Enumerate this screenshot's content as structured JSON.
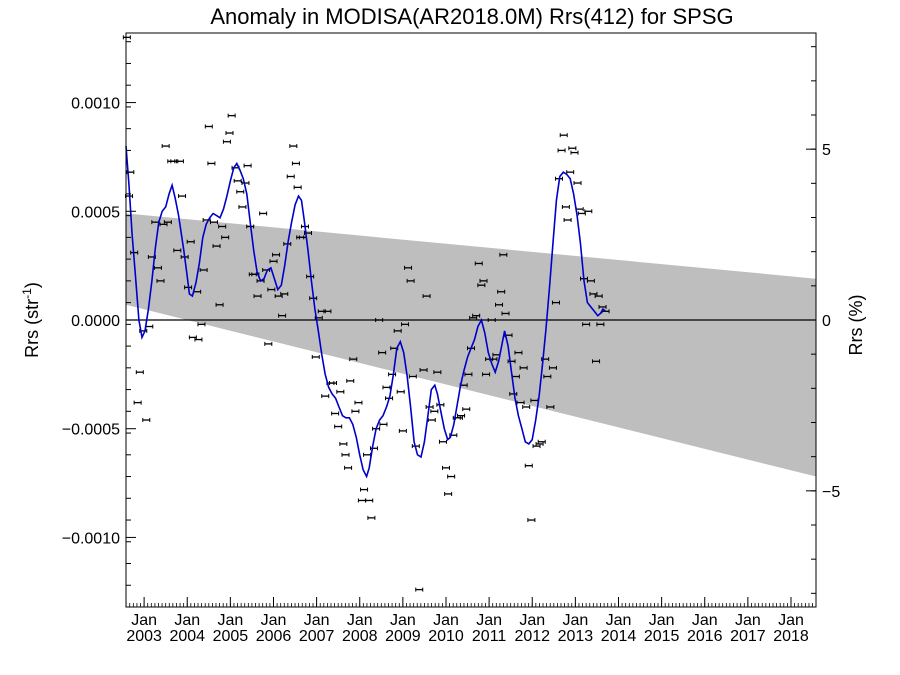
{
  "chart_data": {
    "type": "scatter",
    "title": "Anomaly in MODISA(AR2018.0M) Rrs(412) for SPSG",
    "ylabel_left": "Rrs (str",
    "ylabel_left_sup": "-1",
    "ylabel_left_close": ")",
    "ylabel_right": "Rrs (%)",
    "xlim": [
      2002.58,
      2018.58
    ],
    "ylim": [
      -0.00132,
      0.00132
    ],
    "ylim_right": [
      -8.4,
      8.4
    ],
    "y_ticks": [
      {
        "value": 0.001,
        "label": "0.0010"
      },
      {
        "value": 0.0005,
        "label": "0.0005"
      },
      {
        "value": 0.0,
        "label": "0.0000"
      },
      {
        "value": -0.0005,
        "label": "−0.0005"
      },
      {
        "value": -0.001,
        "label": "−0.0010"
      }
    ],
    "y_right_ticks": [
      {
        "value": 5,
        "label": "5"
      },
      {
        "value": 0,
        "label": "0"
      },
      {
        "value": -5,
        "label": "−5"
      }
    ],
    "x_ticks": [
      {
        "value": 2003.0,
        "month": "Jan",
        "year": "2003"
      },
      {
        "value": 2004.0,
        "month": "Jan",
        "year": "2004"
      },
      {
        "value": 2005.0,
        "month": "Jan",
        "year": "2005"
      },
      {
        "value": 2006.0,
        "month": "Jan",
        "year": "2006"
      },
      {
        "value": 2007.0,
        "month": "Jan",
        "year": "2007"
      },
      {
        "value": 2008.0,
        "month": "Jan",
        "year": "2008"
      },
      {
        "value": 2009.0,
        "month": "Jan",
        "year": "2009"
      },
      {
        "value": 2010.0,
        "month": "Jan",
        "year": "2010"
      },
      {
        "value": 2011.0,
        "month": "Jan",
        "year": "2011"
      },
      {
        "value": 2012.0,
        "month": "Jan",
        "year": "2012"
      },
      {
        "value": 2013.0,
        "month": "Jan",
        "year": "2013"
      },
      {
        "value": 2014.0,
        "month": "Jan",
        "year": "2014"
      },
      {
        "value": 2015.0,
        "month": "Jan",
        "year": "2015"
      },
      {
        "value": 2016.0,
        "month": "Jan",
        "year": "2016"
      },
      {
        "value": 2017.0,
        "month": "Jan",
        "year": "2017"
      },
      {
        "value": 2018.0,
        "month": "Jan",
        "year": "2018"
      }
    ],
    "band": {
      "x_start": 2002.58,
      "x_end": 2018.58,
      "upper_start": 0.00049,
      "upper_end": 0.00019,
      "lower_start": 7e-05,
      "lower_end": -0.00072,
      "color": "#bebebe"
    },
    "zero_line": 0.0,
    "points_color": "#000000",
    "smooth_color": "#0000cc",
    "points": [
      [
        2002.6,
        0.0013
      ],
      [
        2002.65,
        0.00057
      ],
      [
        2002.68,
        0.00068
      ],
      [
        2002.77,
        0.00031
      ],
      [
        2002.85,
        -0.00038
      ],
      [
        2002.9,
        -0.00024
      ],
      [
        2002.98,
        -5e-05
      ],
      [
        2003.05,
        -0.00046
      ],
      [
        2003.12,
        -3e-05
      ],
      [
        2003.18,
        0.00029
      ],
      [
        2003.26,
        0.00045
      ],
      [
        2003.32,
        0.00024
      ],
      [
        2003.38,
        0.00018
      ],
      [
        2003.45,
        0.00044
      ],
      [
        2003.5,
        0.0008
      ],
      [
        2003.55,
        0.00045
      ],
      [
        2003.63,
        0.00073
      ],
      [
        2003.7,
        0.00073
      ],
      [
        2003.77,
        0.00032
      ],
      [
        2003.83,
        0.00073
      ],
      [
        2003.88,
        0.00057
      ],
      [
        2003.94,
        0.00029
      ],
      [
        2004.02,
        0.00015
      ],
      [
        2004.08,
        0.00036
      ],
      [
        2004.13,
        -8e-05
      ],
      [
        2004.23,
        0.00013
      ],
      [
        2004.26,
        -9e-05
      ],
      [
        2004.33,
        -2e-05
      ],
      [
        2004.38,
        0.00023
      ],
      [
        2004.45,
        0.00046
      ],
      [
        2004.5,
        0.00089
      ],
      [
        2004.56,
        0.00072
      ],
      [
        2004.62,
        0.00045
      ],
      [
        2004.68,
        0.00034
      ],
      [
        2004.75,
        7e-05
      ],
      [
        2004.81,
        0.00043
      ],
      [
        2004.88,
        0.00038
      ],
      [
        2004.92,
        0.00082
      ],
      [
        2004.98,
        0.00086
      ],
      [
        2005.03,
        0.00094
      ],
      [
        2005.12,
        0.0007
      ],
      [
        2005.17,
        0.00064
      ],
      [
        2005.23,
        0.00059
      ],
      [
        2005.28,
        0.00052
      ],
      [
        2005.35,
        0.00063
      ],
      [
        2005.4,
        0.00071
      ],
      [
        2005.46,
        0.00043
      ],
      [
        2005.52,
        0.00021
      ],
      [
        2005.58,
        0.00021
      ],
      [
        2005.63,
        0.00011
      ],
      [
        2005.7,
        0.00018
      ],
      [
        2005.76,
        0.00049
      ],
      [
        2005.83,
        0.00023
      ],
      [
        2005.88,
        -0.00011
      ],
      [
        2005.95,
        0.00014
      ],
      [
        2006.0,
        0.00027
      ],
      [
        2006.06,
        0.0003
      ],
      [
        2006.12,
        0.00011
      ],
      [
        2006.2,
        2e-05
      ],
      [
        2006.25,
        0.00012
      ],
      [
        2006.32,
        0.00035
      ],
      [
        2006.4,
        0.00066
      ],
      [
        2006.46,
        0.0008
      ],
      [
        2006.52,
        0.00072
      ],
      [
        2006.56,
        0.00061
      ],
      [
        2006.62,
        0.00038
      ],
      [
        2006.68,
        0.00038
      ],
      [
        2006.73,
        0.00043
      ],
      [
        2006.8,
        0.0004
      ],
      [
        2006.85,
        0.0002
      ],
      [
        2006.92,
        0.0001
      ],
      [
        2006.98,
        -0.00017
      ],
      [
        2007.05,
        1e-05
      ],
      [
        2007.12,
        4e-05
      ],
      [
        2007.2,
        -0.00035
      ],
      [
        2007.25,
        4e-05
      ],
      [
        2007.32,
        -0.00029
      ],
      [
        2007.38,
        -0.00029
      ],
      [
        2007.43,
        -0.00043
      ],
      [
        2007.5,
        -0.00049
      ],
      [
        2007.55,
        -0.00033
      ],
      [
        2007.62,
        -0.00057
      ],
      [
        2007.67,
        -0.00062
      ],
      [
        2007.73,
        -0.00068
      ],
      [
        2007.78,
        -0.00028
      ],
      [
        2007.85,
        -0.00018
      ],
      [
        2007.9,
        -0.00042
      ],
      [
        2007.97,
        -0.00038
      ],
      [
        2008.05,
        -0.00083
      ],
      [
        2008.1,
        -0.00078
      ],
      [
        2008.17,
        -0.00062
      ],
      [
        2008.22,
        -0.00083
      ],
      [
        2008.27,
        -0.00091
      ],
      [
        2008.33,
        -0.00059
      ],
      [
        2008.38,
        -0.0005
      ],
      [
        2008.45,
        0.0
      ],
      [
        2008.52,
        -0.00015
      ],
      [
        2008.55,
        -0.00048
      ],
      [
        2008.62,
        -0.00031
      ],
      [
        2008.68,
        -0.00036
      ],
      [
        2008.75,
        -0.00025
      ],
      [
        2008.8,
        -0.00013
      ],
      [
        2008.88,
        -5e-05
      ],
      [
        2008.95,
        -0.00033
      ],
      [
        2009.0,
        -0.00051
      ],
      [
        2009.05,
        -2e-05
      ],
      [
        2009.12,
        0.00024
      ],
      [
        2009.18,
        0.00018
      ],
      [
        2009.23,
        -0.00026
      ],
      [
        2009.3,
        -0.00058
      ],
      [
        2009.38,
        -0.00124
      ],
      [
        2009.48,
        -0.00023
      ],
      [
        2009.55,
        0.00011
      ],
      [
        2009.62,
        -0.0004
      ],
      [
        2009.67,
        -0.00046
      ],
      [
        2009.73,
        -0.00042
      ],
      [
        2009.8,
        -0.00024
      ],
      [
        2009.87,
        -0.00039
      ],
      [
        2009.93,
        -0.00056
      ],
      [
        2010.0,
        -0.00068
      ],
      [
        2010.05,
        -0.0008
      ],
      [
        2010.12,
        -0.00072
      ],
      [
        2010.17,
        -0.00053
      ],
      [
        2010.25,
        -0.00045
      ],
      [
        2010.3,
        -0.00045
      ],
      [
        2010.35,
        -0.00044
      ],
      [
        2010.41,
        -0.0003
      ],
      [
        2010.47,
        -0.00041
      ],
      [
        2010.52,
        -0.00025
      ],
      [
        2010.58,
        -0.00013
      ],
      [
        2010.63,
        1e-05
      ],
      [
        2010.7,
        2e-05
      ],
      [
        2010.76,
        0.00026
      ],
      [
        2010.82,
        0.00016
      ],
      [
        2010.87,
        0.00018
      ],
      [
        2010.93,
        -0.00025
      ],
      [
        2011.0,
        -0.00018
      ],
      [
        2011.06,
        0.0
      ],
      [
        2011.1,
        -0.00018
      ],
      [
        2011.17,
        -0.00016
      ],
      [
        2011.23,
        7e-05
      ],
      [
        2011.28,
        0.00013
      ],
      [
        2011.33,
        0.0003
      ],
      [
        2011.38,
        3e-05
      ],
      [
        2011.45,
        -7e-05
      ],
      [
        2011.52,
        -0.00019
      ],
      [
        2011.56,
        -0.00034
      ],
      [
        2011.62,
        -0.00026
      ],
      [
        2011.68,
        -0.00015
      ],
      [
        2011.73,
        -0.00038
      ],
      [
        2011.8,
        -0.00022
      ],
      [
        2011.86,
        -0.0004
      ],
      [
        2011.92,
        -0.00067
      ],
      [
        2011.98,
        -0.00092
      ],
      [
        2012.05,
        -0.00037
      ],
      [
        2012.1,
        -0.00058
      ],
      [
        2012.17,
        -0.00057
      ],
      [
        2012.22,
        -0.00056
      ],
      [
        2012.3,
        -0.00018
      ],
      [
        2012.35,
        -0.00026
      ],
      [
        2012.42,
        -0.0004
      ],
      [
        2012.48,
        -0.00022
      ],
      [
        2012.55,
        8e-05
      ],
      [
        2012.62,
        0.00065
      ],
      [
        2012.68,
        0.00078
      ],
      [
        2012.73,
        0.00085
      ],
      [
        2012.78,
        0.00052
      ],
      [
        2012.82,
        0.00046
      ],
      [
        2012.88,
        0.00068
      ],
      [
        2012.93,
        0.00079
      ],
      [
        2012.98,
        0.00077
      ],
      [
        2013.05,
        0.00063
      ],
      [
        2013.1,
        0.00051
      ],
      [
        2013.15,
        0.00049
      ],
      [
        2013.2,
        0.00019
      ],
      [
        2013.25,
        -2e-05
      ],
      [
        2013.3,
        0.0005
      ],
      [
        2013.36,
        0.00018
      ],
      [
        2013.42,
        0.00012
      ],
      [
        2013.48,
        -0.00019
      ],
      [
        2013.54,
        0.00011
      ],
      [
        2013.58,
        -2e-05
      ],
      [
        2013.63,
        6e-05
      ],
      [
        2013.7,
        4e-05
      ]
    ],
    "smooth": [
      [
        2002.58,
        0.0008
      ],
      [
        2002.65,
        0.00062
      ],
      [
        2002.72,
        0.0004
      ],
      [
        2002.8,
        0.0002
      ],
      [
        2002.88,
        0.0
      ],
      [
        2002.95,
        -8e-05
      ],
      [
        2003.02,
        -5e-05
      ],
      [
        2003.1,
        5e-05
      ],
      [
        2003.18,
        0.00018
      ],
      [
        2003.26,
        0.00033
      ],
      [
        2003.34,
        0.00045
      ],
      [
        2003.42,
        0.0005
      ],
      [
        2003.5,
        0.00052
      ],
      [
        2003.58,
        0.00058
      ],
      [
        2003.65,
        0.00062
      ],
      [
        2003.72,
        0.00056
      ],
      [
        2003.8,
        0.00048
      ],
      [
        2003.86,
        0.0004
      ],
      [
        2003.92,
        0.00032
      ],
      [
        2003.98,
        0.00023
      ],
      [
        2004.05,
        0.00012
      ],
      [
        2004.12,
        0.00011
      ],
      [
        2004.2,
        0.00017
      ],
      [
        2004.28,
        0.00026
      ],
      [
        2004.36,
        0.00038
      ],
      [
        2004.44,
        0.00044
      ],
      [
        2004.52,
        0.00047
      ],
      [
        2004.6,
        0.00049
      ],
      [
        2004.68,
        0.00048
      ],
      [
        2004.76,
        0.00047
      ],
      [
        2004.84,
        0.00051
      ],
      [
        2004.92,
        0.00057
      ],
      [
        2005.0,
        0.00064
      ],
      [
        2005.08,
        0.0007
      ],
      [
        2005.15,
        0.00072
      ],
      [
        2005.22,
        0.00069
      ],
      [
        2005.3,
        0.00065
      ],
      [
        2005.38,
        0.00058
      ],
      [
        2005.46,
        0.00045
      ],
      [
        2005.54,
        0.00032
      ],
      [
        2005.62,
        0.00022
      ],
      [
        2005.7,
        0.00018
      ],
      [
        2005.78,
        0.00019
      ],
      [
        2005.86,
        0.00023
      ],
      [
        2005.94,
        0.00024
      ],
      [
        2006.02,
        0.00019
      ],
      [
        2006.1,
        0.00014
      ],
      [
        2006.18,
        0.00016
      ],
      [
        2006.26,
        0.00025
      ],
      [
        2006.34,
        0.00036
      ],
      [
        2006.42,
        0.00045
      ],
      [
        2006.5,
        0.00053
      ],
      [
        2006.58,
        0.00057
      ],
      [
        2006.65,
        0.00055
      ],
      [
        2006.72,
        0.00045
      ],
      [
        2006.8,
        0.00032
      ],
      [
        2006.88,
        0.00018
      ],
      [
        2006.96,
        5e-05
      ],
      [
        2007.04,
        -5e-05
      ],
      [
        2007.12,
        -0.00016
      ],
      [
        2007.2,
        -0.00025
      ],
      [
        2007.28,
        -0.00031
      ],
      [
        2007.36,
        -0.00034
      ],
      [
        2007.44,
        -0.00036
      ],
      [
        2007.52,
        -0.0004
      ],
      [
        2007.6,
        -0.00044
      ],
      [
        2007.68,
        -0.00045
      ],
      [
        2007.76,
        -0.00045
      ],
      [
        2007.84,
        -0.00048
      ],
      [
        2007.92,
        -0.00054
      ],
      [
        2008.0,
        -0.00062
      ],
      [
        2008.08,
        -0.00069
      ],
      [
        2008.16,
        -0.00072
      ],
      [
        2008.22,
        -0.00068
      ],
      [
        2008.3,
        -0.00058
      ],
      [
        2008.38,
        -0.0005
      ],
      [
        2008.46,
        -0.00046
      ],
      [
        2008.54,
        -0.00044
      ],
      [
        2008.62,
        -0.0004
      ],
      [
        2008.7,
        -0.00035
      ],
      [
        2008.78,
        -0.00025
      ],
      [
        2008.86,
        -0.00013
      ],
      [
        2008.94,
        -0.0001
      ],
      [
        2009.02,
        -0.00015
      ],
      [
        2009.1,
        -0.00026
      ],
      [
        2009.18,
        -0.0004
      ],
      [
        2009.26,
        -0.00056
      ],
      [
        2009.34,
        -0.00062
      ],
      [
        2009.42,
        -0.00063
      ],
      [
        2009.5,
        -0.00056
      ],
      [
        2009.58,
        -0.00044
      ],
      [
        2009.66,
        -0.00032
      ],
      [
        2009.74,
        -0.0003
      ],
      [
        2009.8,
        -0.00034
      ],
      [
        2009.88,
        -0.00042
      ],
      [
        2009.96,
        -0.0005
      ],
      [
        2010.04,
        -0.00055
      ],
      [
        2010.1,
        -0.00054
      ],
      [
        2010.18,
        -0.00048
      ],
      [
        2010.26,
        -0.00039
      ],
      [
        2010.34,
        -0.0003
      ],
      [
        2010.42,
        -0.00023
      ],
      [
        2010.5,
        -0.00017
      ],
      [
        2010.58,
        -0.00013
      ],
      [
        2010.66,
        -9e-05
      ],
      [
        2010.74,
        -3e-05
      ],
      [
        2010.82,
        0.0
      ],
      [
        2010.9,
        -6e-05
      ],
      [
        2010.98,
        -0.00015
      ],
      [
        2011.06,
        -0.0002
      ],
      [
        2011.14,
        -0.00024
      ],
      [
        2011.22,
        -0.00019
      ],
      [
        2011.28,
        -0.00013
      ],
      [
        2011.36,
        -5e-05
      ],
      [
        2011.44,
        -0.00012
      ],
      [
        2011.52,
        -0.00024
      ],
      [
        2011.6,
        -0.00036
      ],
      [
        2011.68,
        -0.00044
      ],
      [
        2011.76,
        -0.0005
      ],
      [
        2011.84,
        -0.00056
      ],
      [
        2011.92,
        -0.00057
      ],
      [
        2012.0,
        -0.00055
      ],
      [
        2012.08,
        -0.00046
      ],
      [
        2012.16,
        -0.00035
      ],
      [
        2012.24,
        -0.0002
      ],
      [
        2012.32,
        -4e-05
      ],
      [
        2012.4,
        0.00015
      ],
      [
        2012.48,
        0.00035
      ],
      [
        2012.56,
        0.00055
      ],
      [
        2012.64,
        0.00066
      ],
      [
        2012.72,
        0.00068
      ],
      [
        2012.8,
        0.00067
      ],
      [
        2012.88,
        0.00065
      ],
      [
        2012.96,
        0.00058
      ],
      [
        2013.04,
        0.00048
      ],
      [
        2013.12,
        0.00035
      ],
      [
        2013.2,
        0.00018
      ],
      [
        2013.28,
        8e-05
      ],
      [
        2013.36,
        6e-05
      ],
      [
        2013.44,
        4e-05
      ],
      [
        2013.52,
        2e-05
      ],
      [
        2013.58,
        3e-05
      ],
      [
        2013.64,
        5e-05
      ],
      [
        2013.7,
        4e-05
      ]
    ]
  }
}
